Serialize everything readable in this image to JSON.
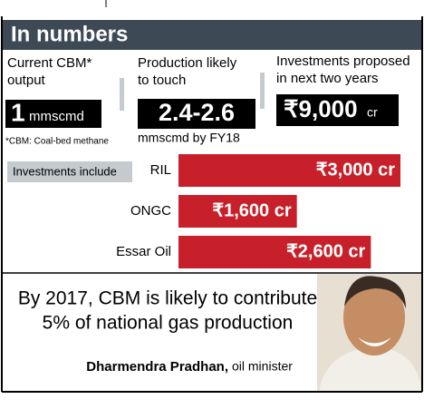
{
  "header": {
    "title": "In numbers"
  },
  "stats": [
    {
      "label": [
        "Current CBM*",
        "output"
      ],
      "value": "1",
      "unit": "mmscmd"
    },
    {
      "label": [
        "Production likely",
        "to touch"
      ],
      "value": "2.4-2.6",
      "note": "mmscmd by FY18"
    },
    {
      "label": [
        "Investments proposed",
        "in next two years"
      ],
      "value": "₹9,000",
      "unit": "cr"
    }
  ],
  "footnote": "*CBM: Coal-bed methane",
  "chart_data": {
    "type": "bar",
    "title": "Investments include",
    "categories": [
      "RIL",
      "ONGC",
      "Essar Oil"
    ],
    "values": [
      3000,
      1600,
      2600
    ],
    "value_labels": [
      "₹3,000 cr",
      "₹1,600 cr",
      "₹2,600 cr"
    ],
    "color": "#c8202a"
  },
  "quote": {
    "lines": [
      "By 2017, CBM is likely to contribute",
      "5% of national gas production"
    ],
    "name": "Dharmendra Pradhan,",
    "role": "oil minister"
  }
}
